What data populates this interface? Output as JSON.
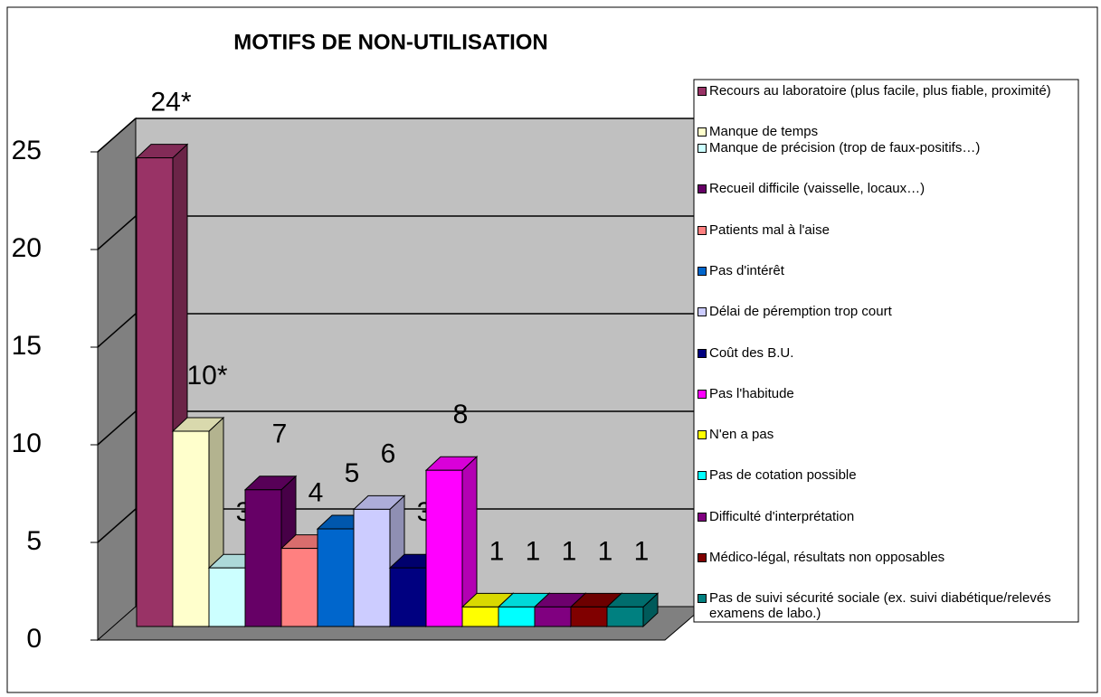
{
  "chart_data": {
    "type": "bar",
    "title": "MOTIFS DE NON-UTILISATION",
    "ylim": [
      0,
      25
    ],
    "yticks": [
      0,
      5,
      10,
      15,
      20,
      25
    ],
    "grid": true,
    "legend": "right",
    "series": [
      {
        "name": "Recours au laboratoire (plus facile, plus fiable, proximité)",
        "color": "#993366",
        "values": [
          24
        ],
        "value_labels": [
          "24*"
        ]
      },
      {
        "name": "Manque de temps",
        "color": "#FFFFCC",
        "values": [
          10
        ],
        "value_labels": [
          "10*"
        ]
      },
      {
        "name": "Manque de précision (trop de faux-positifs…)",
        "color": "#CCFFFF",
        "values": [
          3
        ]
      },
      {
        "name": "Recueil difficile (vaisselle, locaux…)",
        "color": "#660066",
        "values": [
          7
        ]
      },
      {
        "name": "Patients mal à l'aise",
        "color": "#FF8080",
        "values": [
          4
        ]
      },
      {
        "name": "Pas d'intérêt",
        "color": "#0066CC",
        "values": [
          5
        ]
      },
      {
        "name": "Délai de péremption trop court",
        "color": "#CCCCFF",
        "values": [
          6
        ]
      },
      {
        "name": "Coût des B.U.",
        "color": "#000080",
        "values": [
          3
        ]
      },
      {
        "name": "Pas l'habitude",
        "color": "#FF00FF",
        "values": [
          8
        ]
      },
      {
        "name": "N'en a pas",
        "color": "#FFFF00",
        "values": [
          1
        ]
      },
      {
        "name": "Pas de cotation possible",
        "color": "#00FFFF",
        "values": [
          1
        ]
      },
      {
        "name": "Difficulté d'interprétation",
        "color": "#800080",
        "values": [
          1
        ]
      },
      {
        "name": "Médico-légal, résultats non opposables",
        "color": "#800000",
        "values": [
          1
        ]
      },
      {
        "name": "Pas de suivi sécurité sociale (ex. suivi diabétique/relevés examens de labo.)",
        "color": "#008080",
        "values": [
          1
        ]
      }
    ]
  }
}
